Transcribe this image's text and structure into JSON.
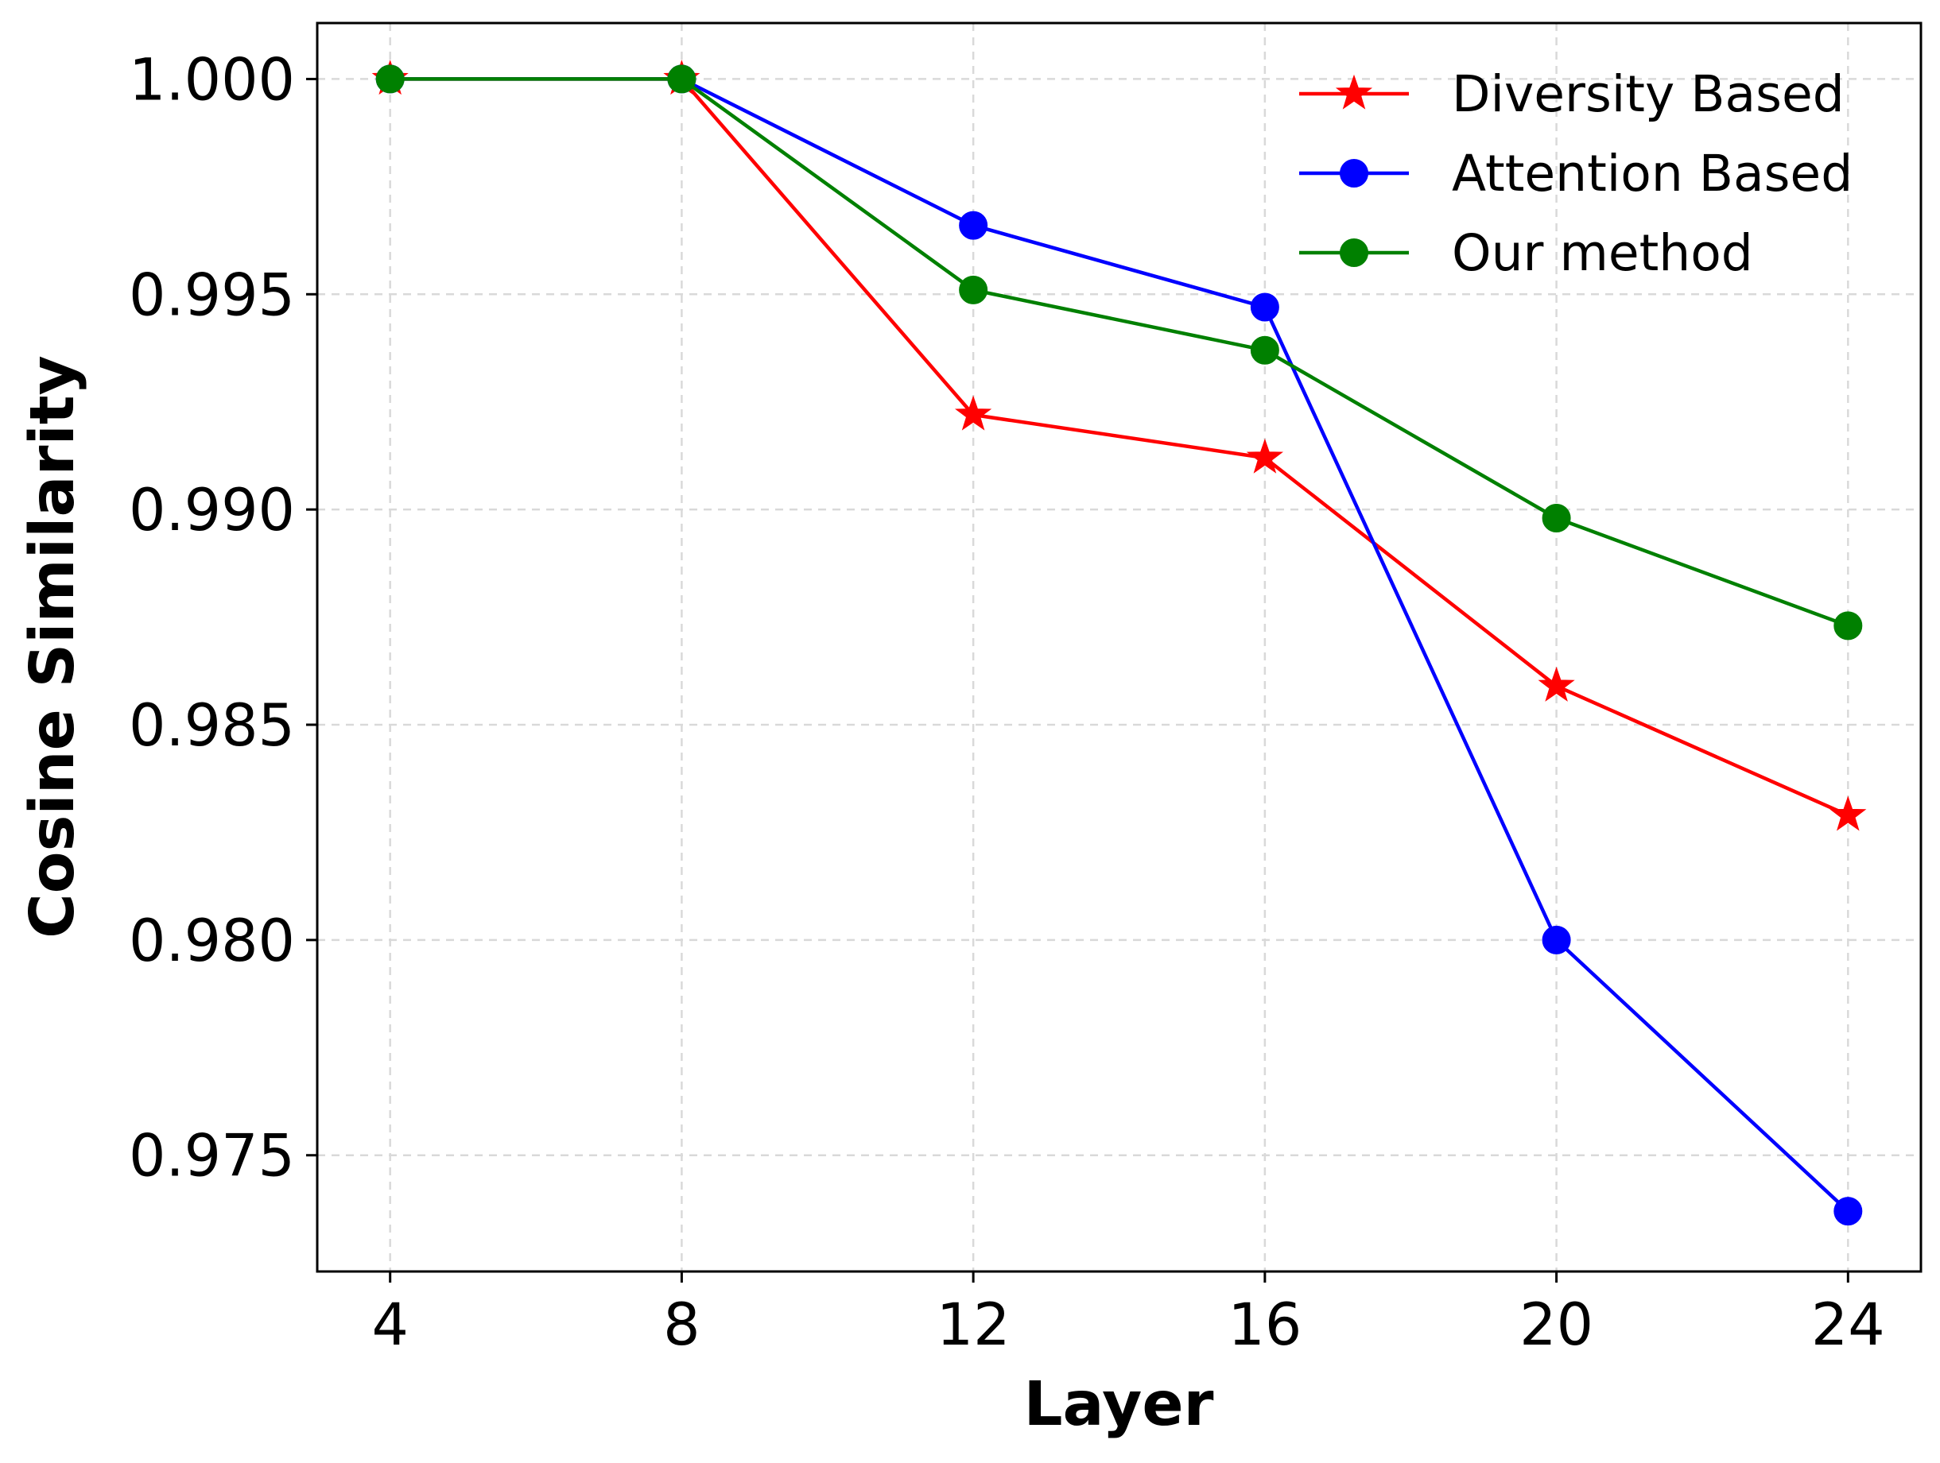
{
  "chart_data": {
    "type": "line",
    "title": "",
    "xlabel": "Layer",
    "ylabel": "Cosine Similarity",
    "x": [
      4,
      8,
      12,
      16,
      20,
      24
    ],
    "xticks": [
      "4",
      "8",
      "12",
      "16",
      "20",
      "24"
    ],
    "yticks": [
      "1.000",
      "0.995",
      "0.990",
      "0.985",
      "0.980",
      "0.975"
    ],
    "ytick_values": [
      1.0,
      0.995,
      0.99,
      0.985,
      0.98,
      0.975
    ],
    "xlim": [
      3.0,
      25.0
    ],
    "ylim": [
      0.9723,
      1.0013
    ],
    "grid": true,
    "legend_position": "top-right",
    "series": [
      {
        "name": "Diversity Based",
        "color": "#ff0000",
        "marker": "star",
        "values": [
          1.0,
          1.0,
          0.9922,
          0.9912,
          0.9859,
          0.9829
        ]
      },
      {
        "name": "Attention Based",
        "color": "#0000ff",
        "marker": "circle",
        "values": [
          1.0,
          1.0,
          0.9966,
          0.9947,
          0.98,
          0.9737
        ]
      },
      {
        "name": "Our method",
        "color": "#008000",
        "marker": "circle",
        "values": [
          1.0,
          1.0,
          0.9951,
          0.9937,
          0.9898,
          0.9873
        ]
      }
    ]
  }
}
